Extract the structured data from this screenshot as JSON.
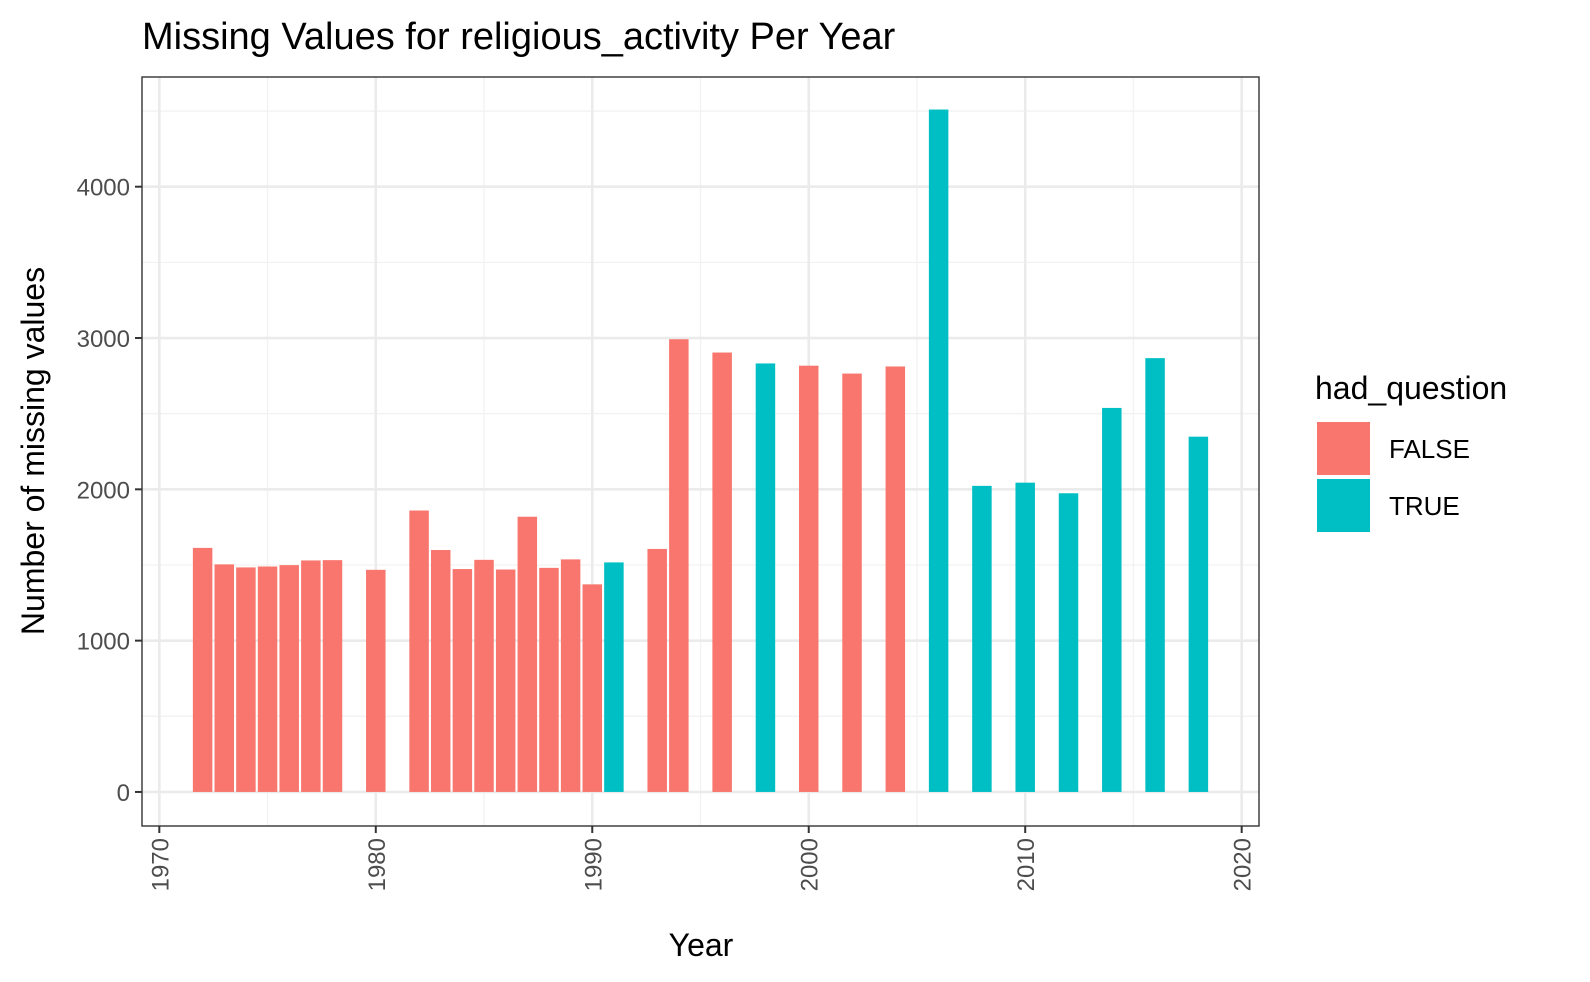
{
  "chart_data": {
    "type": "bar",
    "title": "Missing Values for  religious_activity  Per Year",
    "xlabel": "Year",
    "ylabel": "Number of missing values",
    "xlim": [
      1969.2,
      2020.8
    ],
    "ylim": [
      -225,
      4725
    ],
    "x_ticks": [
      1970,
      1980,
      1990,
      2000,
      2010,
      2020
    ],
    "y_ticks": [
      0,
      1000,
      2000,
      3000,
      4000
    ],
    "grid": true,
    "legend": {
      "title": "had_question",
      "placement": "right",
      "entries": [
        {
          "label": "FALSE",
          "color": "#F8766D"
        },
        {
          "label": "TRUE",
          "color": "#00BFC4"
        }
      ]
    },
    "series": [
      {
        "name": "FALSE",
        "color": "#F8766D",
        "points": [
          {
            "x": 1972,
            "y": 1613
          },
          {
            "x": 1973,
            "y": 1504
          },
          {
            "x": 1974,
            "y": 1484
          },
          {
            "x": 1975,
            "y": 1490
          },
          {
            "x": 1976,
            "y": 1499
          },
          {
            "x": 1977,
            "y": 1530
          },
          {
            "x": 1978,
            "y": 1532
          },
          {
            "x": 1980,
            "y": 1468
          },
          {
            "x": 1982,
            "y": 1860
          },
          {
            "x": 1983,
            "y": 1599
          },
          {
            "x": 1984,
            "y": 1473
          },
          {
            "x": 1985,
            "y": 1534
          },
          {
            "x": 1986,
            "y": 1470
          },
          {
            "x": 1987,
            "y": 1819
          },
          {
            "x": 1988,
            "y": 1481
          },
          {
            "x": 1989,
            "y": 1537
          },
          {
            "x": 1990,
            "y": 1372
          },
          {
            "x": 1993,
            "y": 1606
          },
          {
            "x": 1994,
            "y": 2992
          },
          {
            "x": 1996,
            "y": 2904
          },
          {
            "x": 2000,
            "y": 2817
          },
          {
            "x": 2002,
            "y": 2765
          },
          {
            "x": 2004,
            "y": 2812
          }
        ]
      },
      {
        "name": "TRUE",
        "color": "#00BFC4",
        "points": [
          {
            "x": 1991,
            "y": 1517
          },
          {
            "x": 1998,
            "y": 2832
          },
          {
            "x": 2006,
            "y": 4510
          },
          {
            "x": 2008,
            "y": 2023
          },
          {
            "x": 2010,
            "y": 2044
          },
          {
            "x": 2012,
            "y": 1974
          },
          {
            "x": 2014,
            "y": 2538
          },
          {
            "x": 2016,
            "y": 2867
          },
          {
            "x": 2018,
            "y": 2348
          }
        ]
      }
    ]
  }
}
